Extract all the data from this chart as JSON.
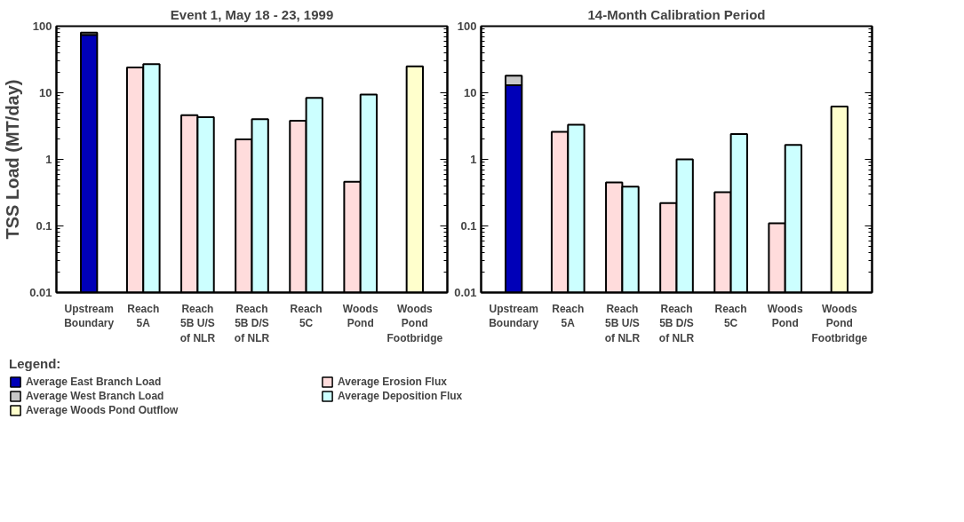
{
  "chart_data": [
    {
      "type": "bar",
      "title": "Event 1, May 18 - 23, 1999",
      "ylabel": "TSS Load (MT/day)",
      "log": true,
      "ylim": [
        0.01,
        100
      ],
      "yticks": [
        0.01,
        0.1,
        1,
        10,
        100
      ],
      "legend": "bottom",
      "legend_title": "Legend:",
      "categories": [
        "Upstream\nBoundary",
        "Reach\n5A",
        "Reach\n5B U/S\nof NLR",
        "Reach\n5B D/S\nof NLR",
        "Reach\n5C",
        "Woods\nPond",
        "Woods\nPond\nFootbridge"
      ],
      "series": [
        {
          "name": "Average East Branch Load",
          "color": "#0000b8",
          "values": [
            74,
            null,
            null,
            null,
            null,
            null,
            null
          ]
        },
        {
          "name": "Average West Branch Load",
          "color": "#c8c8c8",
          "values": [
            6,
            null,
            null,
            null,
            null,
            null,
            null
          ],
          "base": [
            74,
            null,
            null,
            null,
            null,
            null,
            null
          ]
        },
        {
          "name": "Average Woods Pond Outflow",
          "color": "#ffffcc",
          "values": [
            null,
            null,
            null,
            null,
            null,
            null,
            25
          ]
        },
        {
          "name": "Average Erosion Flux",
          "color": "#ffdcdc",
          "values": [
            null,
            24,
            4.6,
            2.0,
            3.8,
            0.46,
            null
          ]
        },
        {
          "name": "Average Deposition Flux",
          "color": "#ccffff",
          "values": [
            null,
            27,
            4.3,
            4.0,
            8.4,
            9.4,
            null
          ]
        }
      ]
    },
    {
      "type": "bar",
      "title": "14-Month Calibration Period",
      "log": true,
      "ylim": [
        0.01,
        100
      ],
      "yticks": [
        0.01,
        0.1,
        1,
        10,
        100
      ],
      "categories": [
        "Upstream\nBoundary",
        "Reach\n5A",
        "Reach\n5B U/S\nof NLR",
        "Reach\n5B D/S\nof NLR",
        "Reach\n5C",
        "Woods\nPond",
        "Woods\nPond\nFootbridge"
      ],
      "series": [
        {
          "color": "#0000b8",
          "values": [
            13,
            null,
            null,
            null,
            null,
            null,
            null
          ]
        },
        {
          "color": "#c8c8c8",
          "values": [
            5,
            null,
            null,
            null,
            null,
            null,
            null
          ],
          "base": [
            13,
            null,
            null,
            null,
            null,
            null,
            null
          ]
        },
        {
          "color": "#ffffcc",
          "values": [
            null,
            null,
            null,
            null,
            null,
            null,
            6.2
          ]
        },
        {
          "color": "#ffdcdc",
          "values": [
            null,
            2.6,
            0.45,
            0.22,
            0.32,
            0.11,
            null
          ]
        },
        {
          "color": "#ccffff",
          "values": [
            null,
            3.3,
            0.39,
            1.0,
            2.4,
            1.65,
            null
          ]
        }
      ]
    }
  ]
}
